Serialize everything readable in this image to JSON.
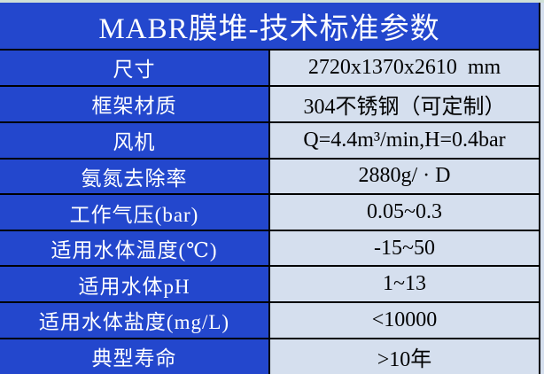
{
  "table": {
    "title": "MABR膜堆-技术标准参数",
    "rows": [
      {
        "label": "尺寸",
        "value": "2720x1370x2610  mm"
      },
      {
        "label": "框架材质",
        "value": "304不锈钢（可定制）"
      },
      {
        "label": "风机",
        "value": "Q=4.4m³/min,H=0.4bar"
      },
      {
        "label": "氨氮去除率",
        "value": "2880g/ · D"
      },
      {
        "label": "工作气压(bar)",
        "value": "0.05~0.3"
      },
      {
        "label": "适用水体温度(℃)",
        "value": "-15~50"
      },
      {
        "label": "适用水体pH",
        "value": "1~13"
      },
      {
        "label": "适用水体盐度(mg/L)",
        "value": "<10000"
      },
      {
        "label": "典型寿命",
        "value": ">10年"
      }
    ],
    "colors": {
      "header_bg": "#2347cd",
      "label_bg": "#2347cd",
      "value_bg": "#d5dfee",
      "border": "#000000",
      "top_strip": "#cfe0d7",
      "title_color": "#ffffff",
      "value_color": "#000000"
    }
  }
}
